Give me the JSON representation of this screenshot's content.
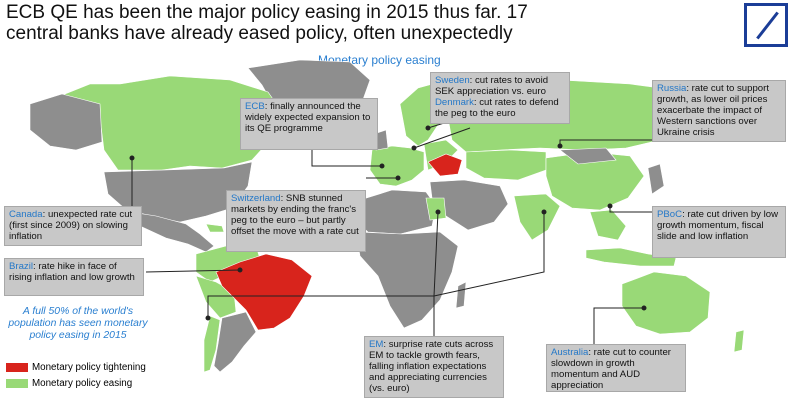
{
  "title_line1": "ECB QE has been the major policy easing in 2015 thus far. 17",
  "title_line2": "central banks have already eased policy, often unexpectedly",
  "subtitle": "Monetary policy easing",
  "colors": {
    "tightening": "#d8241c",
    "easing": "#99d977",
    "neutral": "#8e8e8e",
    "box_bg": "#c8c8c8",
    "highlight": "#2478c8"
  },
  "annotations": {
    "sweden": {
      "name": "Sweden",
      "text": ": cut rates to avoid SEK appreciation vs. euro"
    },
    "denmark": {
      "name": "Denmark",
      "text": ": cut rates to defend the peg to the euro"
    },
    "russia": {
      "name": "Russia",
      "text": ": rate cut to support growth, as lower oil prices exacerbate the impact of Western sanctions over Ukraine crisis"
    },
    "ecb": {
      "name": "ECB",
      "text": ": finally announced the widely expected expansion to its QE programme"
    },
    "switzerland": {
      "name": "Switzerland",
      "text": ": SNB stunned markets by ending the franc's peg to the euro – but partly offset the move with a rate cut"
    },
    "canada": {
      "name": "Canada",
      "text": ": unexpected rate cut (first since 2009) on slowing inflation"
    },
    "pboc": {
      "name": "PBoC",
      "text": ": rate cut driven by low growth momentum, fiscal slide and low inflation"
    },
    "brazil": {
      "name": "Brazil",
      "text": ": rate hike in face of rising inflation and low growth"
    },
    "em": {
      "name": "EM",
      "text": ": surprise rate cuts across EM to tackle growth fears, falling inflation expectations and appreciating currencies (vs. euro)"
    },
    "australia": {
      "name": "Australia",
      "text": ": rate cut to counter slowdown in growth momentum and AUD appreciation"
    }
  },
  "population_note": "A full 50% of the world's population has seen monetary policy easing in 2015",
  "legend": {
    "tightening": "Monetary policy tightening",
    "easing": "Monetary policy easing"
  }
}
